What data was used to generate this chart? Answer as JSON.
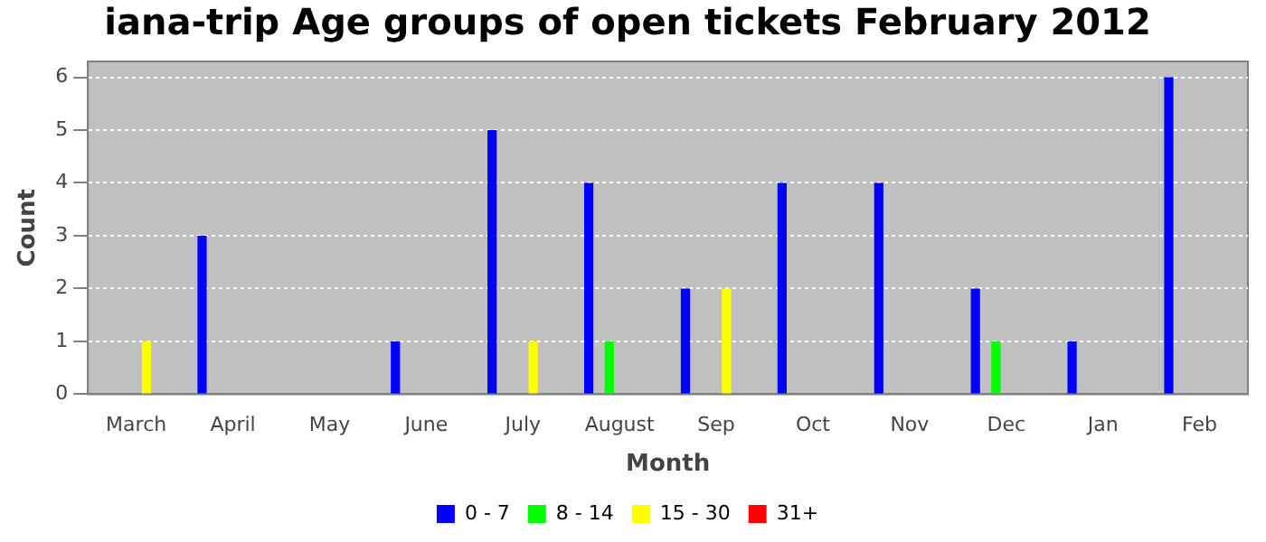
{
  "chart_data": {
    "type": "bar",
    "title": "iana-trip Age groups of open tickets February 2012",
    "xlabel": "Month",
    "ylabel": "Count",
    "categories": [
      "March",
      "April",
      "May",
      "June",
      "July",
      "August",
      "Sep",
      "Oct",
      "Nov",
      "Dec",
      "Jan",
      "Feb"
    ],
    "series": [
      {
        "name": "0 - 7",
        "color": "#0000ff",
        "values": [
          0,
          3,
          0,
          1,
          5,
          4,
          2,
          4,
          4,
          2,
          1,
          6
        ]
      },
      {
        "name": "8 - 14",
        "color": "#00ff00",
        "values": [
          0,
          0,
          0,
          0,
          0,
          1,
          0,
          0,
          0,
          1,
          0,
          0
        ]
      },
      {
        "name": "15 - 30",
        "color": "#ffff00",
        "values": [
          1,
          0,
          0,
          0,
          1,
          0,
          2,
          0,
          0,
          0,
          0,
          0
        ]
      },
      {
        "name": "31+",
        "color": "#ff0000",
        "values": [
          0,
          0,
          0,
          0,
          0,
          0,
          0,
          0,
          0,
          0,
          0,
          0
        ]
      }
    ],
    "ylim": [
      0,
      6.3
    ],
    "yticks": [
      0,
      1,
      2,
      3,
      4,
      5,
      6
    ],
    "grid": "y",
    "legend": "bottom"
  }
}
